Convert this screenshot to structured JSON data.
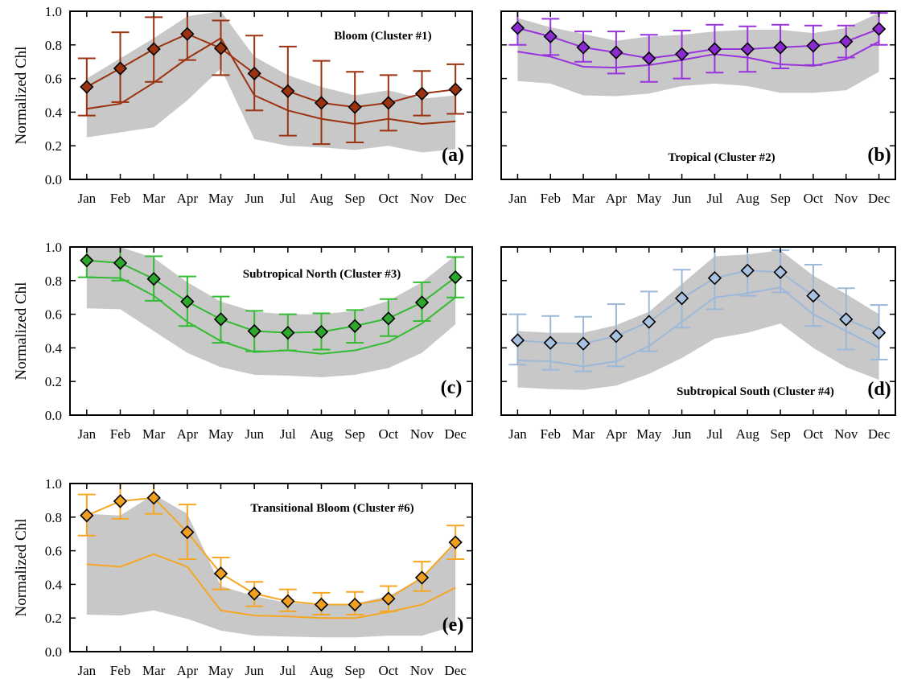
{
  "chart_data": [
    {
      "type": "line",
      "panel_letter": "(a)",
      "annotation": "Bloom (Cluster #1)",
      "ylabel": "Normalized Chl",
      "ylim": [
        0,
        1
      ],
      "yticks": [
        "0.0",
        "0.2",
        "0.4",
        "0.6",
        "0.8",
        "1.0"
      ],
      "categories": [
        "Jan",
        "Feb",
        "Mar",
        "Apr",
        "May",
        "Jun",
        "Jul",
        "Aug",
        "Sep",
        "Oct",
        "Nov",
        "Dec"
      ],
      "color": "#9b3210",
      "marker_fill": "#9b3210",
      "marker_series": {
        "values": [
          0.55,
          0.66,
          0.775,
          0.865,
          0.78,
          0.63,
          0.525,
          0.455,
          0.43,
          0.455,
          0.51,
          0.535
        ],
        "err_low": [
          0.38,
          0.46,
          0.58,
          0.71,
          0.62,
          0.41,
          0.26,
          0.21,
          0.22,
          0.29,
          0.38,
          0.39
        ],
        "err_high": [
          0.72,
          0.875,
          0.965,
          1.0,
          0.945,
          0.855,
          0.79,
          0.705,
          0.64,
          0.62,
          0.645,
          0.685
        ]
      },
      "line_series": {
        "values": [
          0.42,
          0.45,
          0.575,
          0.72,
          0.84,
          0.5,
          0.41,
          0.36,
          0.33,
          0.36,
          0.33,
          0.345
        ]
      },
      "band": {
        "low": [
          0.25,
          0.28,
          0.31,
          0.47,
          0.66,
          0.24,
          0.2,
          0.19,
          0.175,
          0.2,
          0.16,
          0.18
        ],
        "high": [
          0.6,
          0.72,
          0.84,
          0.97,
          1.0,
          0.73,
          0.62,
          0.55,
          0.5,
          0.53,
          0.48,
          0.5
        ]
      }
    },
    {
      "type": "line",
      "panel_letter": "(b)",
      "annotation": "Tropical (Cluster #2)",
      "ylabel": "",
      "ylim": [
        0,
        1
      ],
      "yticks": [],
      "categories": [
        "Jan",
        "Feb",
        "Mar",
        "Apr",
        "May",
        "Jun",
        "Jul",
        "Aug",
        "Sep",
        "Oct",
        "Nov",
        "Dec"
      ],
      "color": "#9933dd",
      "marker_fill": "#8a2ad0",
      "marker_series": {
        "values": [
          0.9,
          0.85,
          0.785,
          0.755,
          0.72,
          0.745,
          0.775,
          0.775,
          0.785,
          0.795,
          0.82,
          0.895
        ],
        "err_low": [
          0.8,
          0.74,
          0.7,
          0.63,
          0.58,
          0.6,
          0.635,
          0.64,
          0.66,
          0.68,
          0.725,
          0.8
        ],
        "err_high": [
          1.0,
          0.955,
          0.88,
          0.88,
          0.86,
          0.885,
          0.92,
          0.91,
          0.92,
          0.915,
          0.915,
          0.99
        ]
      },
      "line_series": {
        "values": [
          0.76,
          0.73,
          0.67,
          0.665,
          0.68,
          0.71,
          0.745,
          0.725,
          0.685,
          0.675,
          0.715,
          0.82
        ]
      },
      "band": {
        "low": [
          0.585,
          0.57,
          0.5,
          0.495,
          0.51,
          0.555,
          0.57,
          0.555,
          0.515,
          0.515,
          0.53,
          0.64
        ],
        "high": [
          0.96,
          0.905,
          0.865,
          0.825,
          0.85,
          0.86,
          0.88,
          0.89,
          0.89,
          0.87,
          0.9,
          0.99
        ]
      }
    },
    {
      "type": "line",
      "panel_letter": "(c)",
      "annotation": "Subtropical North (Cluster #3)",
      "ylabel": "Normalized Chl",
      "ylim": [
        0,
        1
      ],
      "yticks": [
        "0.0",
        "0.2",
        "0.4",
        "0.6",
        "0.8",
        "1.0"
      ],
      "categories": [
        "Jan",
        "Feb",
        "Mar",
        "Apr",
        "May",
        "Jun",
        "Jul",
        "Aug",
        "Sep",
        "Oct",
        "Nov",
        "Dec"
      ],
      "color": "#33bb33",
      "marker_fill": "#2da82d",
      "marker_series": {
        "values": [
          0.92,
          0.905,
          0.81,
          0.675,
          0.57,
          0.5,
          0.49,
          0.495,
          0.53,
          0.575,
          0.67,
          0.82
        ],
        "err_low": [
          0.82,
          0.8,
          0.68,
          0.53,
          0.43,
          0.38,
          0.385,
          0.39,
          0.43,
          0.47,
          0.56,
          0.7
        ],
        "err_high": [
          1.0,
          1.0,
          0.945,
          0.825,
          0.705,
          0.62,
          0.6,
          0.605,
          0.625,
          0.69,
          0.79,
          0.94
        ]
      },
      "line_series": {
        "values": [
          0.82,
          0.815,
          0.71,
          0.555,
          0.44,
          0.375,
          0.385,
          0.365,
          0.385,
          0.435,
          0.545,
          0.7
        ]
      },
      "band": {
        "low": [
          0.635,
          0.63,
          0.5,
          0.37,
          0.285,
          0.24,
          0.235,
          0.225,
          0.24,
          0.28,
          0.37,
          0.54
        ],
        "high": [
          1.0,
          1.0,
          0.935,
          0.79,
          0.675,
          0.615,
          0.6,
          0.6,
          0.62,
          0.68,
          0.79,
          0.95
        ]
      }
    },
    {
      "type": "line",
      "panel_letter": "(d)",
      "annotation": "Subtropical South (Cluster #4)",
      "ylabel": "",
      "ylim": [
        0,
        1
      ],
      "yticks": [],
      "categories": [
        "Jan",
        "Feb",
        "Mar",
        "Apr",
        "May",
        "Jun",
        "Jul",
        "Aug",
        "Sep",
        "Oct",
        "Nov",
        "Dec"
      ],
      "color": "#9db8d8",
      "marker_fill": "#a8c1e0",
      "marker_series": {
        "values": [
          0.445,
          0.43,
          0.425,
          0.47,
          0.555,
          0.695,
          0.815,
          0.86,
          0.85,
          0.71,
          0.57,
          0.49
        ],
        "err_low": [
          0.3,
          0.27,
          0.26,
          0.29,
          0.38,
          0.52,
          0.63,
          0.71,
          0.73,
          0.53,
          0.39,
          0.33
        ],
        "err_high": [
          0.6,
          0.59,
          0.585,
          0.66,
          0.735,
          0.865,
          1.0,
          1.0,
          0.98,
          0.895,
          0.755,
          0.655
        ]
      },
      "line_series": {
        "values": [
          0.325,
          0.32,
          0.29,
          0.32,
          0.41,
          0.555,
          0.7,
          0.725,
          0.76,
          0.6,
          0.5,
          0.4
        ]
      },
      "band": {
        "low": [
          0.165,
          0.155,
          0.15,
          0.175,
          0.245,
          0.34,
          0.455,
          0.49,
          0.545,
          0.4,
          0.285,
          0.21
        ],
        "high": [
          0.5,
          0.49,
          0.49,
          0.535,
          0.615,
          0.78,
          0.945,
          0.955,
          0.98,
          0.83,
          0.72,
          0.6
        ]
      }
    },
    {
      "type": "line",
      "panel_letter": "(e)",
      "annotation": "Transitional Bloom (Cluster #6)",
      "ylabel": "Normalized Chl",
      "ylim": [
        0,
        1
      ],
      "yticks": [
        "0.0",
        "0.2",
        "0.4",
        "0.6",
        "0.8",
        "1.0"
      ],
      "categories": [
        "Jan",
        "Feb",
        "Mar",
        "Apr",
        "May",
        "Jun",
        "Jul",
        "Aug",
        "Sep",
        "Oct",
        "Nov",
        "Dec"
      ],
      "color": "#f5a623",
      "marker_fill": "#f0a020",
      "marker_series": {
        "values": [
          0.81,
          0.895,
          0.915,
          0.71,
          0.465,
          0.345,
          0.3,
          0.28,
          0.28,
          0.315,
          0.44,
          0.65
        ],
        "err_low": [
          0.69,
          0.79,
          0.82,
          0.55,
          0.37,
          0.27,
          0.24,
          0.22,
          0.22,
          0.24,
          0.36,
          0.55
        ],
        "err_high": [
          0.935,
          1.0,
          1.0,
          0.875,
          0.56,
          0.415,
          0.37,
          0.35,
          0.355,
          0.39,
          0.535,
          0.75
        ]
      },
      "line_series": {
        "values": [
          0.52,
          0.505,
          0.58,
          0.505,
          0.245,
          0.215,
          0.21,
          0.2,
          0.2,
          0.235,
          0.28,
          0.38
        ]
      },
      "band": {
        "low": [
          0.22,
          0.215,
          0.245,
          0.195,
          0.125,
          0.095,
          0.09,
          0.085,
          0.085,
          0.095,
          0.095,
          0.155
        ],
        "high": [
          0.82,
          0.81,
          0.935,
          0.82,
          0.39,
          0.33,
          0.29,
          0.28,
          0.285,
          0.33,
          0.44,
          0.64
        ]
      }
    }
  ]
}
